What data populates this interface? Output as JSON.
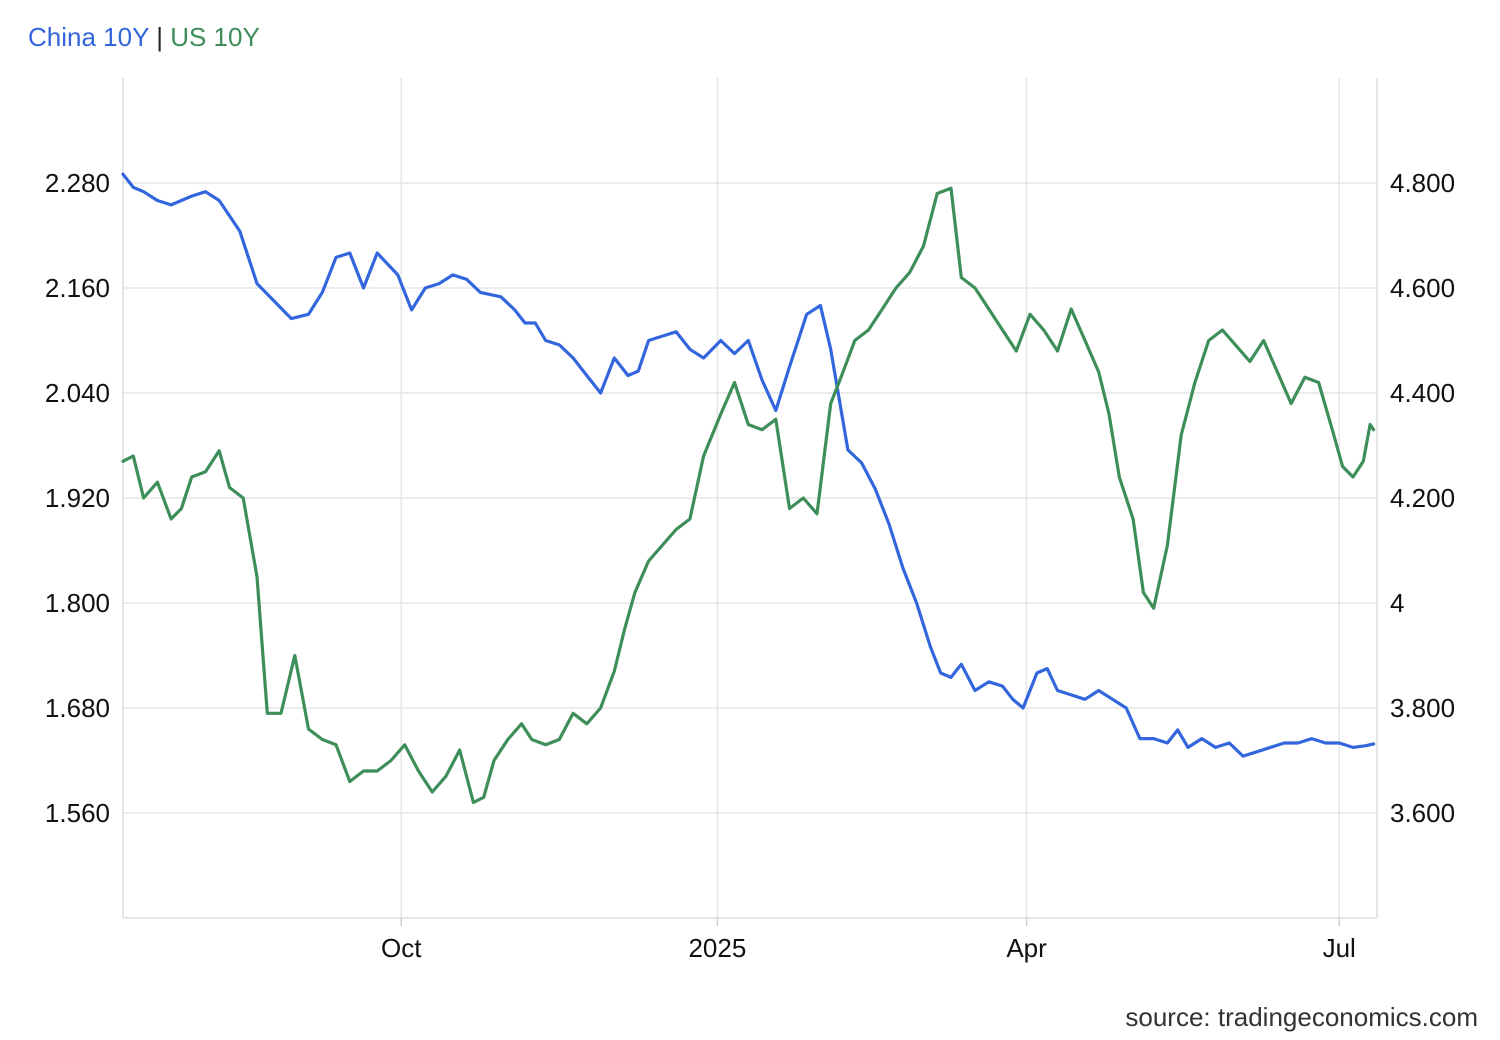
{
  "chart_data": {
    "type": "line",
    "title": "",
    "legend": {
      "placement": "top-left",
      "separator": "|"
    },
    "source": "source: tradingeconomics.com",
    "x_ticks": [
      "Oct",
      "2025",
      "Apr",
      "Jul"
    ],
    "x_range": [
      "2024-07-12",
      "2025-07-12"
    ],
    "grid": true,
    "series": [
      {
        "name": "China 10Y",
        "axis": "left",
        "color": "#3366dd",
        "y_range": [
          1.44,
          2.4
        ],
        "y_ticks": [
          "2.280",
          "2.160",
          "2.040",
          "1.920",
          "1.800",
          "1.680",
          "1.560"
        ],
        "points": [
          [
            "2024-07-12",
            2.29
          ],
          [
            "2024-07-15",
            2.275
          ],
          [
            "2024-07-18",
            2.27
          ],
          [
            "2024-07-22",
            2.26
          ],
          [
            "2024-07-26",
            2.255
          ],
          [
            "2024-07-29",
            2.26
          ],
          [
            "2024-08-01",
            2.265
          ],
          [
            "2024-08-05",
            2.27
          ],
          [
            "2024-08-09",
            2.26
          ],
          [
            "2024-08-15",
            2.225
          ],
          [
            "2024-08-20",
            2.165
          ],
          [
            "2024-08-25",
            2.145
          ],
          [
            "2024-08-30",
            2.125
          ],
          [
            "2024-09-04",
            2.13
          ],
          [
            "2024-09-08",
            2.155
          ],
          [
            "2024-09-12",
            2.195
          ],
          [
            "2024-09-16",
            2.2
          ],
          [
            "2024-09-20",
            2.16
          ],
          [
            "2024-09-24",
            2.2
          ],
          [
            "2024-09-30",
            2.175
          ],
          [
            "2024-10-04",
            2.135
          ],
          [
            "2024-10-08",
            2.16
          ],
          [
            "2024-10-12",
            2.165
          ],
          [
            "2024-10-16",
            2.175
          ],
          [
            "2024-10-20",
            2.17
          ],
          [
            "2024-10-24",
            2.155
          ],
          [
            "2024-10-30",
            2.15
          ],
          [
            "2024-11-03",
            2.135
          ],
          [
            "2024-11-06",
            2.12
          ],
          [
            "2024-11-09",
            2.12
          ],
          [
            "2024-11-12",
            2.1
          ],
          [
            "2024-11-16",
            2.095
          ],
          [
            "2024-11-20",
            2.08
          ],
          [
            "2024-11-24",
            2.06
          ],
          [
            "2024-11-28",
            2.04
          ],
          [
            "2024-12-02",
            2.08
          ],
          [
            "2024-12-06",
            2.06
          ],
          [
            "2024-12-09",
            2.065
          ],
          [
            "2024-12-12",
            2.1
          ],
          [
            "2024-12-16",
            2.105
          ],
          [
            "2024-12-20",
            2.11
          ],
          [
            "2024-12-24",
            2.09
          ],
          [
            "2024-12-28",
            2.08
          ],
          [
            "2025-01-02",
            2.1
          ],
          [
            "2025-01-06",
            2.085
          ],
          [
            "2025-01-10",
            2.1
          ],
          [
            "2025-01-14",
            2.055
          ],
          [
            "2025-01-18",
            2.02
          ],
          [
            "2025-01-22",
            2.07
          ],
          [
            "2025-01-27",
            2.13
          ],
          [
            "2025-01-31",
            2.14
          ],
          [
            "2025-02-03",
            2.09
          ],
          [
            "2025-02-08",
            1.975
          ],
          [
            "2025-02-12",
            1.96
          ],
          [
            "2025-02-16",
            1.93
          ],
          [
            "2025-02-20",
            1.89
          ],
          [
            "2025-02-24",
            1.84
          ],
          [
            "2025-02-28",
            1.8
          ],
          [
            "2025-03-04",
            1.75
          ],
          [
            "2025-03-07",
            1.72
          ],
          [
            "2025-03-10",
            1.715
          ],
          [
            "2025-03-13",
            1.73
          ],
          [
            "2025-03-17",
            1.7
          ],
          [
            "2025-03-21",
            1.71
          ],
          [
            "2025-03-25",
            1.705
          ],
          [
            "2025-03-28",
            1.69
          ],
          [
            "2025-03-31",
            1.68
          ],
          [
            "2025-04-04",
            1.72
          ],
          [
            "2025-04-07",
            1.725
          ],
          [
            "2025-04-10",
            1.7
          ],
          [
            "2025-04-14",
            1.695
          ],
          [
            "2025-04-18",
            1.69
          ],
          [
            "2025-04-22",
            1.7
          ],
          [
            "2025-04-26",
            1.69
          ],
          [
            "2025-04-30",
            1.68
          ],
          [
            "2025-05-04",
            1.645
          ],
          [
            "2025-05-08",
            1.645
          ],
          [
            "2025-05-12",
            1.64
          ],
          [
            "2025-05-15",
            1.655
          ],
          [
            "2025-05-18",
            1.635
          ],
          [
            "2025-05-22",
            1.645
          ],
          [
            "2025-05-26",
            1.635
          ],
          [
            "2025-05-30",
            1.64
          ],
          [
            "2025-06-03",
            1.625
          ],
          [
            "2025-06-07",
            1.63
          ],
          [
            "2025-06-11",
            1.635
          ],
          [
            "2025-06-15",
            1.64
          ],
          [
            "2025-06-19",
            1.64
          ],
          [
            "2025-06-23",
            1.645
          ],
          [
            "2025-06-27",
            1.64
          ],
          [
            "2025-07-01",
            1.64
          ],
          [
            "2025-07-05",
            1.635
          ],
          [
            "2025-07-09",
            1.637
          ],
          [
            "2025-07-11",
            1.639
          ]
        ]
      },
      {
        "name": "US 10Y",
        "axis": "right",
        "color": "#3e8e5a",
        "y_range": [
          3.4,
          5.0
        ],
        "y_ticks": [
          "4.800",
          "4.600",
          "4.400",
          "4.200",
          "4",
          "3.800",
          "3.600"
        ],
        "points": [
          [
            "2024-07-12",
            4.27
          ],
          [
            "2024-07-15",
            4.28
          ],
          [
            "2024-07-18",
            4.2
          ],
          [
            "2024-07-22",
            4.23
          ],
          [
            "2024-07-26",
            4.16
          ],
          [
            "2024-07-29",
            4.18
          ],
          [
            "2024-08-01",
            4.24
          ],
          [
            "2024-08-05",
            4.25
          ],
          [
            "2024-08-09",
            4.29
          ],
          [
            "2024-08-12",
            4.22
          ],
          [
            "2024-08-16",
            4.2
          ],
          [
            "2024-08-20",
            4.05
          ],
          [
            "2024-08-23",
            3.79
          ],
          [
            "2024-08-27",
            3.79
          ],
          [
            "2024-08-31",
            3.9
          ],
          [
            "2024-09-04",
            3.76
          ],
          [
            "2024-09-08",
            3.74
          ],
          [
            "2024-09-12",
            3.73
          ],
          [
            "2024-09-16",
            3.66
          ],
          [
            "2024-09-20",
            3.68
          ],
          [
            "2024-09-24",
            3.68
          ],
          [
            "2024-09-28",
            3.7
          ],
          [
            "2024-10-02",
            3.73
          ],
          [
            "2024-10-06",
            3.68
          ],
          [
            "2024-10-10",
            3.64
          ],
          [
            "2024-10-14",
            3.67
          ],
          [
            "2024-10-18",
            3.72
          ],
          [
            "2024-10-22",
            3.62
          ],
          [
            "2024-10-25",
            3.63
          ],
          [
            "2024-10-28",
            3.7
          ],
          [
            "2024-11-01",
            3.74
          ],
          [
            "2024-11-05",
            3.77
          ],
          [
            "2024-11-08",
            3.74
          ],
          [
            "2024-11-12",
            3.73
          ],
          [
            "2024-11-16",
            3.74
          ],
          [
            "2024-11-20",
            3.79
          ],
          [
            "2024-11-24",
            3.77
          ],
          [
            "2024-11-28",
            3.8
          ],
          [
            "2024-12-02",
            3.87
          ],
          [
            "2024-12-05",
            3.95
          ],
          [
            "2024-12-08",
            4.02
          ],
          [
            "2024-12-12",
            4.08
          ],
          [
            "2024-12-16",
            4.11
          ],
          [
            "2024-12-20",
            4.14
          ],
          [
            "2024-12-24",
            4.16
          ],
          [
            "2024-12-28",
            4.28
          ],
          [
            "2025-01-02",
            4.36
          ],
          [
            "2025-01-06",
            4.42
          ],
          [
            "2025-01-10",
            4.34
          ],
          [
            "2025-01-14",
            4.33
          ],
          [
            "2025-01-18",
            4.35
          ],
          [
            "2025-01-22",
            4.18
          ],
          [
            "2025-01-26",
            4.2
          ],
          [
            "2025-01-30",
            4.17
          ],
          [
            "2025-02-03",
            4.38
          ],
          [
            "2025-02-06",
            4.43
          ],
          [
            "2025-02-10",
            4.5
          ],
          [
            "2025-02-14",
            4.52
          ],
          [
            "2025-02-18",
            4.56
          ],
          [
            "2025-02-22",
            4.6
          ],
          [
            "2025-02-26",
            4.63
          ],
          [
            "2025-03-02",
            4.68
          ],
          [
            "2025-03-06",
            4.78
          ],
          [
            "2025-03-10",
            4.79
          ],
          [
            "2025-03-13",
            4.62
          ],
          [
            "2025-03-17",
            4.6
          ],
          [
            "2025-03-21",
            4.56
          ],
          [
            "2025-03-25",
            4.52
          ],
          [
            "2025-03-29",
            4.48
          ],
          [
            "2025-04-02",
            4.55
          ],
          [
            "2025-04-06",
            4.52
          ],
          [
            "2025-04-10",
            4.48
          ],
          [
            "2025-04-14",
            4.56
          ],
          [
            "2025-04-18",
            4.5
          ],
          [
            "2025-04-22",
            4.44
          ],
          [
            "2025-04-25",
            4.36
          ],
          [
            "2025-04-28",
            4.24
          ],
          [
            "2025-05-02",
            4.16
          ],
          [
            "2025-05-05",
            4.02
          ],
          [
            "2025-05-08",
            3.99
          ],
          [
            "2025-05-12",
            4.11
          ],
          [
            "2025-05-16",
            4.32
          ],
          [
            "2025-05-20",
            4.42
          ],
          [
            "2025-05-24",
            4.5
          ],
          [
            "2025-05-28",
            4.52
          ],
          [
            "2025-06-01",
            4.49
          ],
          [
            "2025-06-05",
            4.46
          ],
          [
            "2025-06-09",
            4.5
          ],
          [
            "2025-06-13",
            4.44
          ],
          [
            "2025-06-17",
            4.38
          ],
          [
            "2025-06-21",
            4.43
          ],
          [
            "2025-06-25",
            4.42
          ],
          [
            "2025-06-29",
            4.33
          ],
          [
            "2025-07-02",
            4.26
          ],
          [
            "2025-07-05",
            4.24
          ],
          [
            "2025-07-08",
            4.27
          ],
          [
            "2025-07-10",
            4.34
          ],
          [
            "2025-07-11",
            4.33
          ]
        ]
      }
    ]
  }
}
